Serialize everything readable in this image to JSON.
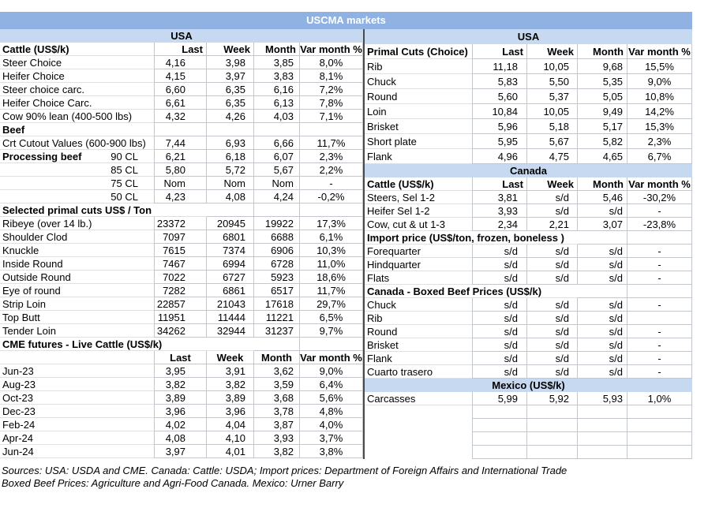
{
  "title": "USCMA markets",
  "columns": {
    "last": "Last",
    "week": "Week",
    "month": "Month",
    "var_month": "Var month %"
  },
  "colors": {
    "title_bg": "#8FB2E3",
    "title_text": "#FFFFFF",
    "region_bg": "#C7D9F1",
    "grid": "#C2C7CD",
    "divider": "#4A4A4A"
  },
  "left_table": {
    "rows": [
      {
        "type": "region",
        "label": "USA"
      },
      {
        "type": "header",
        "label": "Cattle (US$/k)"
      },
      {
        "type": "data",
        "label": "Steer Choice",
        "values": [
          "4,16",
          "3,98",
          "3,85",
          "8,0%"
        ]
      },
      {
        "type": "data",
        "label": "Heifer Choice",
        "values": [
          "4,15",
          "3,97",
          "3,83",
          "8,1%"
        ]
      },
      {
        "type": "data",
        "label": "Steer choice carc.",
        "values": [
          "6,60",
          "6,35",
          "6,16",
          "7,2%"
        ]
      },
      {
        "type": "data",
        "label": "Heifer Choice Carc.",
        "values": [
          "6,61",
          "6,35",
          "6,13",
          "7,8%"
        ]
      },
      {
        "type": "data",
        "label": "Cow 90% lean (400-500 lbs)",
        "values": [
          "4,32",
          "4,26",
          "4,03",
          "7,1%"
        ]
      },
      {
        "type": "section",
        "label": "Beef",
        "span": 0
      },
      {
        "type": "data",
        "label": "Crt Cutout Values (600-900 lbs)",
        "values": [
          "7,44",
          "6,93",
          "6,66",
          "11,7%"
        ]
      },
      {
        "type": "data",
        "label": "Processing beef",
        "label_bold": true,
        "label2": "90 CL",
        "values": [
          "6,21",
          "6,18",
          "6,07",
          "2,3%"
        ]
      },
      {
        "type": "data",
        "label": "",
        "label2": "85 CL",
        "values": [
          "5,80",
          "5,72",
          "5,67",
          "2,2%"
        ]
      },
      {
        "type": "data",
        "label": "",
        "label2": "75 CL",
        "values": [
          "Nom",
          "Nom",
          "Nom",
          "-"
        ]
      },
      {
        "type": "data",
        "label": "",
        "label2": "50 CL",
        "values": [
          "4,23",
          "4,08",
          "4,24",
          "-0,2%"
        ]
      },
      {
        "type": "section",
        "label": "Selected primal cuts US$ / Ton",
        "span": 1
      },
      {
        "type": "data",
        "label": "Ribeye (over 14 lb.)",
        "values": [
          "23372",
          "20945",
          "19922",
          "17,3%"
        ]
      },
      {
        "type": "data",
        "label": "Shoulder Clod",
        "values": [
          "7097",
          "6801",
          "6688",
          "6,1%"
        ]
      },
      {
        "type": "data",
        "label": "Knuckle",
        "values": [
          "7615",
          "7374",
          "6906",
          "10,3%"
        ]
      },
      {
        "type": "data",
        "label": "Inside Round",
        "values": [
          "7467",
          "6994",
          "6728",
          "11,0%"
        ]
      },
      {
        "type": "data",
        "label": "Outside Round",
        "values": [
          "7022",
          "6727",
          "5923",
          "18,6%"
        ]
      },
      {
        "type": "data",
        "label": "Eye of round",
        "values": [
          "7282",
          "6861",
          "6517",
          "11,7%"
        ]
      },
      {
        "type": "data",
        "label": "Strip Loin",
        "values": [
          "22857",
          "21043",
          "17618",
          "29,7%"
        ]
      },
      {
        "type": "data",
        "label": "Top Butt",
        "values": [
          "11951",
          "11444",
          "11221",
          "6,5%"
        ]
      },
      {
        "type": "data",
        "label": "Tender Loin",
        "values": [
          "34262",
          "32944",
          "31237",
          "9,7%"
        ]
      },
      {
        "type": "section",
        "label": "CME futures - Live Cattle (US$/k)",
        "span": 2
      },
      {
        "type": "subheader"
      },
      {
        "type": "data",
        "label": "Jun-23",
        "values": [
          "3,95",
          "3,91",
          "3,62",
          "9,0%"
        ]
      },
      {
        "type": "data",
        "label": "Aug-23",
        "values": [
          "3,82",
          "3,82",
          "3,59",
          "6,4%"
        ]
      },
      {
        "type": "data",
        "label": "Oct-23",
        "values": [
          "3,89",
          "3,89",
          "3,68",
          "5,6%"
        ]
      },
      {
        "type": "data",
        "label": "Dec-23",
        "values": [
          "3,96",
          "3,96",
          "3,78",
          "4,8%"
        ]
      },
      {
        "type": "data",
        "label": "Feb-24",
        "values": [
          "4,02",
          "4,04",
          "3,87",
          "4,0%"
        ]
      },
      {
        "type": "data",
        "label": "Apr-24",
        "values": [
          "4,08",
          "4,10",
          "3,93",
          "3,7%"
        ]
      },
      {
        "type": "data",
        "label": "Jun-24",
        "values": [
          "3,97",
          "4,01",
          "3,82",
          "3,8%"
        ]
      }
    ]
  },
  "right_table": {
    "rows": [
      {
        "type": "region",
        "label": "USA"
      },
      {
        "type": "header",
        "label": "Primal Cuts (Choice)"
      },
      {
        "type": "data",
        "label": "Rib",
        "values": [
          "11,18",
          "10,05",
          "9,68",
          "15,5%"
        ]
      },
      {
        "type": "data",
        "label": "Chuck",
        "values": [
          "5,83",
          "5,50",
          "5,35",
          "9,0%"
        ]
      },
      {
        "type": "data",
        "label": "Round",
        "values": [
          "5,60",
          "5,37",
          "5,05",
          "10,8%"
        ]
      },
      {
        "type": "data",
        "label": "Loin",
        "values": [
          "10,84",
          "10,05",
          "9,49",
          "14,2%"
        ]
      },
      {
        "type": "data",
        "label": "Brisket",
        "values": [
          "5,96",
          "5,18",
          "5,17",
          "15,3%"
        ]
      },
      {
        "type": "data",
        "label": "Short plate",
        "values": [
          "5,95",
          "5,67",
          "5,82",
          "2,3%"
        ]
      },
      {
        "type": "data",
        "label": "Flank",
        "values": [
          "4,96",
          "4,75",
          "4,65",
          "6,7%"
        ]
      },
      {
        "type": "region",
        "label": "Canada"
      },
      {
        "type": "header",
        "label": "Cattle (US$/k)"
      },
      {
        "type": "data",
        "label": "Steers, Sel 1-2",
        "values": [
          "3,81",
          "s/d",
          "5,46",
          "-30,2%"
        ]
      },
      {
        "type": "data",
        "label": "Heifer Sel 1-2",
        "values": [
          "3,93",
          "s/d",
          "s/d",
          "-"
        ]
      },
      {
        "type": "data",
        "label": "Cow, cut & ut 1-3",
        "values": [
          "2,34",
          "2,21",
          "3,07",
          "-23,8%"
        ]
      },
      {
        "type": "section",
        "label": "Import price (US$/ton, frozen, boneless )",
        "span": 2
      },
      {
        "type": "data",
        "label": "Forequarter",
        "values": [
          "s/d",
          "s/d",
          "s/d",
          "-"
        ]
      },
      {
        "type": "data",
        "label": "Hindquarter",
        "values": [
          "s/d",
          "s/d",
          "s/d",
          "-"
        ]
      },
      {
        "type": "data",
        "label": "Flats",
        "values": [
          "s/d",
          "s/d",
          "s/d",
          "-"
        ]
      },
      {
        "type": "section",
        "label": "Canada - Boxed Beef Prices (US$/k)",
        "span": 2
      },
      {
        "type": "data",
        "label": "Chuck",
        "values": [
          "s/d",
          "s/d",
          "s/d",
          "-"
        ]
      },
      {
        "type": "data",
        "label": "Rib",
        "values": [
          "s/d",
          "s/d",
          "s/d",
          ""
        ]
      },
      {
        "type": "data",
        "label": "Round",
        "values": [
          "s/d",
          "s/d",
          "s/d",
          "-"
        ]
      },
      {
        "type": "data",
        "label": "Brisket",
        "values": [
          "s/d",
          "s/d",
          "s/d",
          "-"
        ]
      },
      {
        "type": "data",
        "label": "Flank",
        "values": [
          "s/d",
          "s/d",
          "s/d",
          "-"
        ]
      },
      {
        "type": "data",
        "label": "Cuarto trasero",
        "values": [
          "s/d",
          "s/d",
          "s/d",
          "-"
        ]
      },
      {
        "type": "region",
        "label": "Mexico (US$/k)"
      },
      {
        "type": "data",
        "label": "Carcasses",
        "values": [
          "5,99",
          "5,92",
          "5,93",
          "1,0%"
        ]
      },
      {
        "type": "empty"
      },
      {
        "type": "empty"
      },
      {
        "type": "empty"
      },
      {
        "type": "empty"
      }
    ]
  },
  "footer": {
    "line1": "Sources: USA: USDA and CME. Canada: Cattle: USDA; Import prices: Department of Foreign Affairs and International Trade",
    "line2": "Boxed Beef Prices: Agriculture and Agri-Food Canada. Mexico: Urner Barry"
  }
}
